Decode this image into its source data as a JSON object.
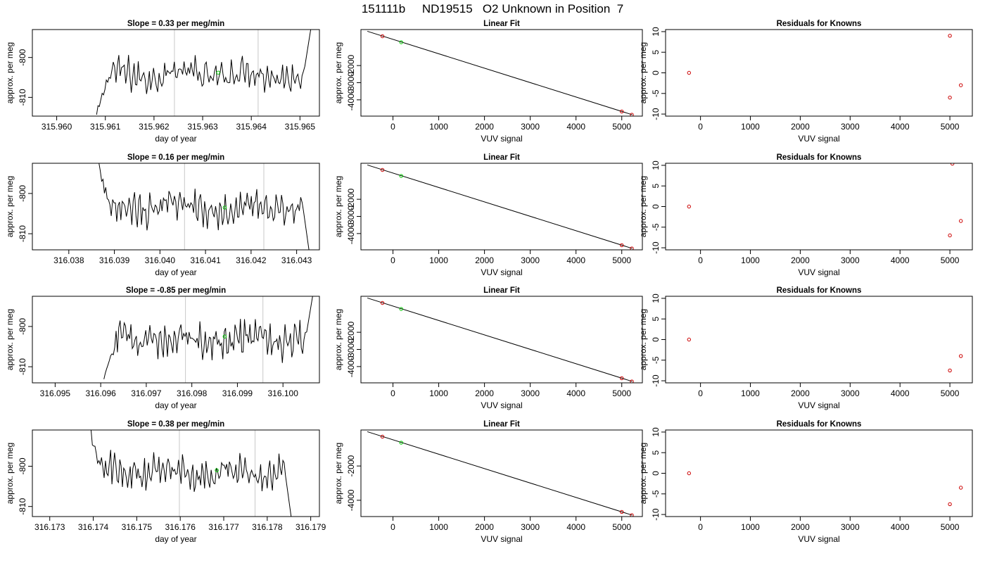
{
  "figure": {
    "title": "151111b     ND19515   O2 Unknown in Position  7"
  },
  "chart_data": [
    {
      "row": 1,
      "kind": "time-series",
      "type": "line",
      "title": "Slope =  0.33  per meg/min",
      "xlabel": "day of year",
      "ylabel": "approx. per meg",
      "xlim": [
        315.9595,
        315.9654
      ],
      "ylim": [
        -814.7,
        -793.0
      ],
      "x_ticks": [
        "315.960",
        "315.961",
        "315.962",
        "315.963",
        "315.964",
        "315.965"
      ],
      "x_tick_values": [
        315.96,
        315.961,
        315.962,
        315.963,
        315.964,
        315.965
      ],
      "y_ticks": [
        "-800",
        "-810"
      ],
      "y_tick_values": [
        -800,
        -810
      ],
      "vlines": [
        315.96242,
        315.96414
      ],
      "marker": {
        "x": 315.96332,
        "y": -803.8,
        "color": "#00cc00"
      },
      "trace_start": 315.96082,
      "trace_end": 315.96522,
      "rise_start": 315.9651,
      "rise_end": 315.96522,
      "rise_to": -793,
      "baseline": -804.2,
      "low_value": -814.7,
      "line_color": "#000000",
      "vline_color": "#c8c8c8"
    },
    {
      "row": 1,
      "kind": "fit",
      "type": "scatter",
      "title": "Linear Fit",
      "xlabel": "VUV signal",
      "ylabel": "approx. per meg",
      "xlim": [
        -700,
        5450
      ],
      "ylim": [
        -4950,
        100
      ],
      "x_ticks": [
        "0",
        "1000",
        "2000",
        "3000",
        "4000",
        "5000"
      ],
      "x_tick_values": [
        0,
        1000,
        2000,
        3000,
        4000,
        5000
      ],
      "y_ticks": [
        "-2000",
        "-3000",
        "-4000"
      ],
      "y_tick_values": [
        -2000,
        -3000,
        -4000
      ],
      "fit_line": {
        "x1": -560,
        "y1": 0,
        "x2": 5230,
        "y2": -4870
      },
      "knowns": [
        {
          "x": -230,
          "y": -290
        },
        {
          "x": 5000,
          "y": -4680
        },
        {
          "x": 5220,
          "y": -4870
        }
      ],
      "unknown": {
        "x": 180,
        "y": -640
      },
      "known_color": "#cc0000",
      "unknown_color": "#00cc00"
    },
    {
      "row": 1,
      "kind": "residuals",
      "type": "scatter",
      "title": "Residuals for Knowns",
      "xlabel": "VUV signal",
      "ylabel": "approx. per meg",
      "xlim": [
        -700,
        5450
      ],
      "ylim": [
        -10.5,
        10.5
      ],
      "x_ticks": [
        "0",
        "1000",
        "2000",
        "3000",
        "4000",
        "5000"
      ],
      "x_tick_values": [
        0,
        1000,
        2000,
        3000,
        4000,
        5000
      ],
      "y_ticks": [
        "-10",
        "-5",
        "0",
        "5",
        "10"
      ],
      "y_tick_values": [
        -10,
        -5,
        0,
        5,
        10
      ],
      "points": [
        {
          "x": -230,
          "y": 0
        },
        {
          "x": 5000,
          "y": 9
        },
        {
          "x": 5220,
          "y": -3
        },
        {
          "x": 5000,
          "y": -6
        }
      ],
      "color": "#cc0000"
    },
    {
      "row": 2,
      "kind": "time-series",
      "type": "line",
      "title": "Slope =  0.16  per meg/min",
      "xlabel": "day of year",
      "ylabel": "approx. per meg",
      "xlim": [
        316.0372,
        316.0435
      ],
      "ylim": [
        -814.0,
        -792.5
      ],
      "x_ticks": [
        "316.038",
        "316.039",
        "316.040",
        "316.041",
        "316.042",
        "316.043"
      ],
      "x_tick_values": [
        316.038,
        316.039,
        316.04,
        316.041,
        316.042,
        316.043
      ],
      "y_ticks": [
        "-800",
        "-810"
      ],
      "y_tick_values": [
        -800,
        -810
      ],
      "vlines": [
        316.04054,
        316.04228
      ],
      "marker": {
        "x": 316.04142,
        "y": -803.5,
        "color": "#00cc00"
      },
      "trace_start": 316.03863,
      "trace_end": 316.04327,
      "rise_start": 316.04315,
      "rise_end": 316.04327,
      "rise_to": -814,
      "baseline": -803.5,
      "low_value": -792.5,
      "line_color": "#000000",
      "vline_color": "#c8c8c8"
    },
    {
      "row": 2,
      "kind": "fit",
      "type": "scatter",
      "title": "Linear Fit",
      "xlabel": "VUV signal",
      "ylabel": "approx. per meg",
      "xlim": [
        -700,
        5450
      ],
      "ylim": [
        -4950,
        100
      ],
      "x_ticks": [
        "0",
        "1000",
        "2000",
        "3000",
        "4000",
        "5000"
      ],
      "x_tick_values": [
        0,
        1000,
        2000,
        3000,
        4000,
        5000
      ],
      "y_ticks": [
        "-2000",
        "-3000",
        "-4000"
      ],
      "y_tick_values": [
        -2000,
        -3000,
        -4000
      ],
      "fit_line": {
        "x1": -560,
        "y1": 0,
        "x2": 5230,
        "y2": -4870
      },
      "knowns": [
        {
          "x": -230,
          "y": -290
        },
        {
          "x": 5000,
          "y": -4680
        },
        {
          "x": 5220,
          "y": -4870
        }
      ],
      "unknown": {
        "x": 180,
        "y": -640
      },
      "known_color": "#cc0000",
      "unknown_color": "#00cc00"
    },
    {
      "row": 2,
      "kind": "residuals",
      "type": "scatter",
      "title": "Residuals for Knowns",
      "xlabel": "VUV signal",
      "ylabel": "approx. per meg",
      "xlim": [
        -700,
        5450
      ],
      "ylim": [
        -10.5,
        10.5
      ],
      "x_ticks": [
        "0",
        "1000",
        "2000",
        "3000",
        "4000",
        "5000"
      ],
      "x_tick_values": [
        0,
        1000,
        2000,
        3000,
        4000,
        5000
      ],
      "y_ticks": [
        "-10",
        "-5",
        "0",
        "5",
        "10"
      ],
      "y_tick_values": [
        -10,
        -5,
        0,
        5,
        10
      ],
      "points": [
        {
          "x": -230,
          "y": 0
        },
        {
          "x": 5050,
          "y": 10.4
        },
        {
          "x": 5220,
          "y": -3.5
        },
        {
          "x": 5000,
          "y": -7
        }
      ],
      "color": "#cc0000"
    },
    {
      "row": 3,
      "kind": "time-series",
      "type": "line",
      "title": "Slope =  -0.85  per meg/min",
      "xlabel": "day of year",
      "ylabel": "approx. per meg",
      "xlim": [
        316.0945,
        316.1008
      ],
      "ylim": [
        -814.0,
        -792.5
      ],
      "x_ticks": [
        "316.095",
        "316.096",
        "316.097",
        "316.098",
        "316.099",
        "316.100"
      ],
      "x_tick_values": [
        316.095,
        316.096,
        316.097,
        316.098,
        316.099,
        316.1
      ],
      "y_ticks": [
        "-800",
        "-810"
      ],
      "y_tick_values": [
        -800,
        -810
      ],
      "vlines": [
        316.09786,
        316.09956
      ],
      "marker": {
        "x": 316.09872,
        "y": -802.5,
        "color": "#00cc00"
      },
      "trace_start": 316.09607,
      "trace_end": 316.10065,
      "rise_start": 316.10052,
      "rise_end": 316.10065,
      "rise_to": -792.5,
      "baseline": -803.3,
      "low_value": -814,
      "line_color": "#000000",
      "vline_color": "#c8c8c8"
    },
    {
      "row": 3,
      "kind": "fit",
      "type": "scatter",
      "title": "Linear Fit",
      "xlabel": "VUV signal",
      "ylabel": "approx. per meg",
      "xlim": [
        -700,
        5450
      ],
      "ylim": [
        -4950,
        100
      ],
      "x_ticks": [
        "0",
        "1000",
        "2000",
        "3000",
        "4000",
        "5000"
      ],
      "x_tick_values": [
        0,
        1000,
        2000,
        3000,
        4000,
        5000
      ],
      "y_ticks": [
        "-2000",
        "-3000",
        "-4000"
      ],
      "y_tick_values": [
        -2000,
        -3000,
        -4000
      ],
      "fit_line": {
        "x1": -560,
        "y1": 0,
        "x2": 5230,
        "y2": -4870
      },
      "knowns": [
        {
          "x": -230,
          "y": -290
        },
        {
          "x": 5000,
          "y": -4680
        },
        {
          "x": 5220,
          "y": -4870
        }
      ],
      "unknown": {
        "x": 180,
        "y": -640
      },
      "known_color": "#cc0000",
      "unknown_color": "#00cc00"
    },
    {
      "row": 3,
      "kind": "residuals",
      "type": "scatter",
      "title": "Residuals for Knowns",
      "xlabel": "VUV signal",
      "ylabel": "approx. per meg",
      "xlim": [
        -700,
        5450
      ],
      "ylim": [
        -10.5,
        10.5
      ],
      "x_ticks": [
        "0",
        "1000",
        "2000",
        "3000",
        "4000",
        "5000"
      ],
      "x_tick_values": [
        0,
        1000,
        2000,
        3000,
        4000,
        5000
      ],
      "y_ticks": [
        "-10",
        "-5",
        "0",
        "5",
        "10"
      ],
      "y_tick_values": [
        -10,
        -5,
        0,
        5,
        10
      ],
      "points": [
        {
          "x": -230,
          "y": 0
        },
        {
          "x": 5220,
          "y": -4
        },
        {
          "x": 5000,
          "y": -7.5
        }
      ],
      "color": "#cc0000"
    },
    {
      "row": 4,
      "kind": "time-series",
      "type": "line",
      "title": "Slope =  0.38  per meg/min",
      "xlabel": "day of year",
      "ylabel": "approx. per meg",
      "xlim": [
        316.1726,
        316.1792
      ],
      "ylim": [
        -812.5,
        -791.0
      ],
      "x_ticks": [
        "316.173",
        "316.174",
        "316.175",
        "316.176",
        "316.177",
        "316.178",
        "316.179"
      ],
      "x_tick_values": [
        316.173,
        316.174,
        316.175,
        316.176,
        316.177,
        316.178,
        316.179
      ],
      "y_ticks": [
        "-800",
        "-810"
      ],
      "y_tick_values": [
        -800,
        -810
      ],
      "vlines": [
        316.17598,
        316.17772
      ],
      "marker": {
        "x": 316.17684,
        "y": -801.0,
        "color": "#00cc00"
      },
      "trace_start": 316.17392,
      "trace_end": 316.17855,
      "rise_start": 316.17842,
      "rise_end": 316.17855,
      "rise_to": -812.5,
      "baseline": -801.5,
      "low_value": -791,
      "line_color": "#000000",
      "vline_color": "#c8c8c8"
    },
    {
      "row": 4,
      "kind": "fit",
      "type": "scatter",
      "title": "Linear Fit",
      "xlabel": "VUV signal",
      "ylabel": "approx. per meg",
      "xlim": [
        -700,
        5450
      ],
      "ylim": [
        -4950,
        100
      ],
      "x_ticks": [
        "0",
        "1000",
        "2000",
        "3000",
        "4000",
        "5000"
      ],
      "x_tick_values": [
        0,
        1000,
        2000,
        3000,
        4000,
        5000
      ],
      "y_ticks": [
        "-2000",
        "-4000"
      ],
      "y_tick_values": [
        -2000,
        -4000
      ],
      "fit_line": {
        "x1": -560,
        "y1": 0,
        "x2": 5230,
        "y2": -4870
      },
      "knowns": [
        {
          "x": -230,
          "y": -290
        },
        {
          "x": 5000,
          "y": -4680
        },
        {
          "x": 5220,
          "y": -4870
        }
      ],
      "unknown": {
        "x": 180,
        "y": -640
      },
      "known_color": "#cc0000",
      "unknown_color": "#00cc00"
    },
    {
      "row": 4,
      "kind": "residuals",
      "type": "scatter",
      "title": "Residuals for Knowns",
      "xlabel": "VUV signal",
      "ylabel": "approx. per meg",
      "xlim": [
        -700,
        5450
      ],
      "ylim": [
        -10.5,
        10.5
      ],
      "x_ticks": [
        "0",
        "1000",
        "2000",
        "3000",
        "4000",
        "5000"
      ],
      "x_tick_values": [
        0,
        1000,
        2000,
        3000,
        4000,
        5000
      ],
      "y_ticks": [
        "-10",
        "-5",
        "0",
        "5",
        "10"
      ],
      "y_tick_values": [
        -10,
        -5,
        0,
        5,
        10
      ],
      "points": [
        {
          "x": -230,
          "y": 0
        },
        {
          "x": 5220,
          "y": -3.5
        },
        {
          "x": 5000,
          "y": -7.5
        }
      ],
      "color": "#cc0000"
    }
  ]
}
